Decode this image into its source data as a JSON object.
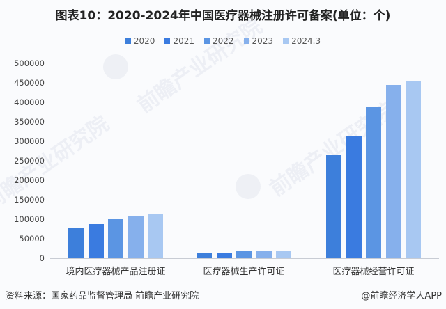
{
  "title": "图表10：2020-2024年中国医疗器械注册许可备案(单位：个)",
  "legend": [
    {
      "label": "2020",
      "color": "#3d7fdb"
    },
    {
      "label": "2021",
      "color": "#3a7be0"
    },
    {
      "label": "2022",
      "color": "#5b95e3"
    },
    {
      "label": "2023",
      "color": "#86b0ec"
    },
    {
      "label": "2024.3",
      "color": "#a8c8f2"
    }
  ],
  "y_ticks": [
    "500000",
    "450000",
    "400000",
    "350000",
    "300000",
    "250000",
    "200000",
    "150000",
    "100000",
    "50000",
    "0"
  ],
  "categories": [
    "境内医疗器械产品注册证",
    "医疗器械生产许可证",
    "医疗器械经营许可证"
  ],
  "footer": {
    "source": "资料来源：国家药品监督管理局 前瞻产业研究院",
    "credit": "@前瞻经济学人APP"
  },
  "watermark": "前瞻产业研究院",
  "chart_data": {
    "type": "bar",
    "title": "图表10：2020-2024年中国医疗器械注册许可备案(单位：个)",
    "xlabel": "",
    "ylabel": "",
    "ylim": [
      0,
      500000
    ],
    "grid": false,
    "legend_position": "top",
    "categories": [
      "境内医疗器械产品注册证",
      "医疗器械生产许可证",
      "医疗器械经营许可证"
    ],
    "series": [
      {
        "name": "2020",
        "values": [
          78000,
          13000,
          264000
        ]
      },
      {
        "name": "2021",
        "values": [
          87000,
          14000,
          312000
        ]
      },
      {
        "name": "2022",
        "values": [
          100000,
          18000,
          387000
        ]
      },
      {
        "name": "2023",
        "values": [
          107000,
          18000,
          444000
        ]
      },
      {
        "name": "2024.3",
        "values": [
          114000,
          18000,
          455000
        ]
      }
    ]
  }
}
